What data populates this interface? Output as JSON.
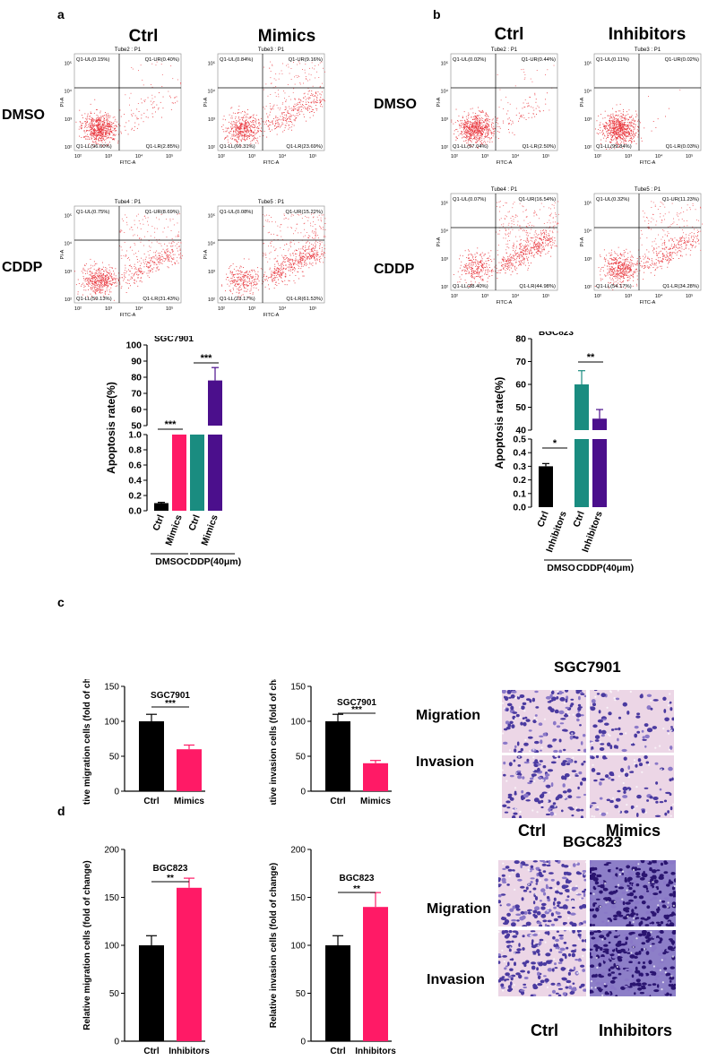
{
  "panel_labels": {
    "a": "a",
    "b": "b",
    "c": "c",
    "d": "d"
  },
  "flow_a": {
    "col_headers": [
      "Ctrl",
      "Mimics"
    ],
    "row_headers": [
      "DMSO",
      "CDDP"
    ],
    "plots": [
      {
        "tube": "Tube2 : P1",
        "ul": "Q1-UL(0.15%)",
        "ur": "Q1-UR(0.40%)",
        "ll": "Q1-LL(96.60%)",
        "lr": "Q1-LR(2.85%)",
        "x": "FITC-A",
        "y": "PI-A",
        "type": "dmso_low"
      },
      {
        "tube": "Tube3 : P1",
        "ul": "Q1-UL(0.84%)",
        "ur": "Q1-UR(9.16%)",
        "ll": "Q1-LL(66.31%)",
        "lr": "Q1-LR(23.69%)",
        "x": "FITC-A",
        "y": "PI-A",
        "type": "mid"
      },
      {
        "tube": "Tube4 : P1",
        "ul": "Q1-UL(0.75%)",
        "ur": "Q1-UR(8.69%)",
        "ll": "Q1-LL(59.13%)",
        "lr": "Q1-LR(31.43%)",
        "x": "FITC-A",
        "y": "PI-A",
        "type": "mid"
      },
      {
        "tube": "Tube5 : P1",
        "ul": "Q1-UL(0.08%)",
        "ur": "Q1-UR(15.22%)",
        "ll": "Q1-LL(23.17%)",
        "lr": "Q1-LR(61.53%)",
        "x": "FITC-A",
        "y": "PI-A",
        "type": "high"
      }
    ]
  },
  "flow_b": {
    "col_headers": [
      "Ctrl",
      "Inhibitors"
    ],
    "row_headers": [
      "DMSO",
      "CDDP"
    ],
    "plots": [
      {
        "tube": "Tube2 : P1",
        "ul": "Q1-UL(0.02%)",
        "ur": "Q1-UR(0.44%)",
        "ll": "Q1-LL(97.04%)",
        "lr": "Q1-LR(2.50%)",
        "x": "FITC-A",
        "y": "PI-A",
        "type": "dmso_low"
      },
      {
        "tube": "Tube3 : P1",
        "ul": "Q1-UL(0.11%)",
        "ur": "Q1-UR(0.02%)",
        "ll": "Q1-LL(99.84%)",
        "lr": "Q1-LR(0.03%)",
        "x": "FITC-A",
        "y": "PI-A",
        "type": "dmso_min"
      },
      {
        "tube": "Tube4 : P1",
        "ul": "Q1-UL(0.07%)",
        "ur": "Q1-UR(16.54%)",
        "ll": "Q1-LL(38.40%)",
        "lr": "Q1-LR(44.98%)",
        "x": "FITC-A",
        "y": "PI-A",
        "type": "high"
      },
      {
        "tube": "Tube5 : P1",
        "ul": "Q1-UL(0.32%)",
        "ur": "Q1-UR(11.23%)",
        "ll": "Q1-LL(54.17%)",
        "lr": "Q1-LR(34.28%)",
        "x": "FITC-A",
        "y": "PI-A",
        "type": "mid"
      }
    ]
  },
  "micro": {
    "sgc_title": "SGC7901",
    "bgc_title": "BGC823",
    "migration": "Migration",
    "invasion": "Invasion",
    "sgc_cols": [
      "Ctrl",
      "Mimics"
    ],
    "bgc_cols": [
      "Ctrl",
      "Inhibitors"
    ]
  },
  "chart_data": [
    {
      "type": "bar",
      "title": "SGC7901",
      "ylabel": "Apoptosis rate(%)",
      "categories": [
        "Ctrl",
        "Mimics",
        "Ctrl",
        "Mimics"
      ],
      "values": [
        0.1,
        1.0,
        1.0,
        78
      ],
      "errors": [
        0.01,
        0,
        0,
        8
      ],
      "colors": [
        "#000000",
        "#ff1a66",
        "#1a8c80",
        "#4b0f8c"
      ],
      "broken_axis": {
        "lower": [
          0,
          1.0
        ],
        "upper": [
          50,
          100
        ]
      },
      "lower_ticks": [
        "0.0",
        "0.2",
        "0.4",
        "0.6",
        "0.8",
        "1.0"
      ],
      "upper_ticks": [
        "50",
        "60",
        "70",
        "80",
        "90",
        "100"
      ],
      "groups": [
        "DMSO",
        "CDDP(40μm)"
      ],
      "significance": [
        "***",
        "***"
      ]
    },
    {
      "type": "bar",
      "title": "BGC823",
      "ylabel": "Apoptosis rate(%)",
      "categories": [
        "Ctrl",
        "Inhibitors",
        "Ctrl",
        "Inhibitors"
      ],
      "values": [
        0.3,
        0,
        60,
        45
      ],
      "errors": [
        0.02,
        0,
        6,
        4
      ],
      "colors": [
        "#000000",
        "#ff1a66",
        "#1a8c80",
        "#4b0f8c"
      ],
      "broken_axis": {
        "lower": [
          0,
          0.5
        ],
        "upper": [
          40,
          80
        ]
      },
      "lower_ticks": [
        "0.0",
        "0.1",
        "0.2",
        "0.3",
        "0.4",
        "0.5"
      ],
      "upper_ticks": [
        "40",
        "50",
        "60",
        "70",
        "80"
      ],
      "groups": [
        "DMSO",
        "CDDP(40μm)"
      ],
      "significance": [
        "*",
        "**"
      ]
    },
    {
      "type": "bar",
      "title": "SGC7901",
      "ylabel": "Relative migration cells (fold of change)",
      "categories": [
        "Ctrl",
        "Mimics"
      ],
      "values": [
        100,
        60
      ],
      "errors": [
        10,
        6
      ],
      "colors": [
        "#000000",
        "#ff1a66"
      ],
      "ylim": [
        0,
        150
      ],
      "yticks": [
        "0",
        "50",
        "100",
        "150"
      ],
      "significance": "***"
    },
    {
      "type": "bar",
      "title": "SGC7901",
      "ylabel": "Relative invasion cells (fold of change)",
      "categories": [
        "Ctrl",
        "Mimics"
      ],
      "values": [
        100,
        40
      ],
      "errors": [
        10,
        4
      ],
      "colors": [
        "#000000",
        "#ff1a66"
      ],
      "ylim": [
        0,
        150
      ],
      "yticks": [
        "0",
        "50",
        "100",
        "150"
      ],
      "significance": "***"
    },
    {
      "type": "bar",
      "title": "BGC823",
      "ylabel": "Relative migration cells (fold of change)",
      "categories": [
        "Ctrl",
        "Inhibitors"
      ],
      "values": [
        100,
        160
      ],
      "errors": [
        10,
        10
      ],
      "colors": [
        "#000000",
        "#ff1a66"
      ],
      "ylim": [
        0,
        200
      ],
      "yticks": [
        "0",
        "50",
        "100",
        "150",
        "200"
      ],
      "significance": "**"
    },
    {
      "type": "bar",
      "title": "BGC823",
      "ylabel": "Relative invasion cells (fold of change)",
      "categories": [
        "Ctrl",
        "Inhibitors"
      ],
      "values": [
        100,
        140
      ],
      "errors": [
        10,
        15
      ],
      "colors": [
        "#000000",
        "#ff1a66"
      ],
      "ylim": [
        0,
        200
      ],
      "yticks": [
        "0",
        "50",
        "100",
        "150",
        "200"
      ],
      "significance": "**"
    }
  ]
}
